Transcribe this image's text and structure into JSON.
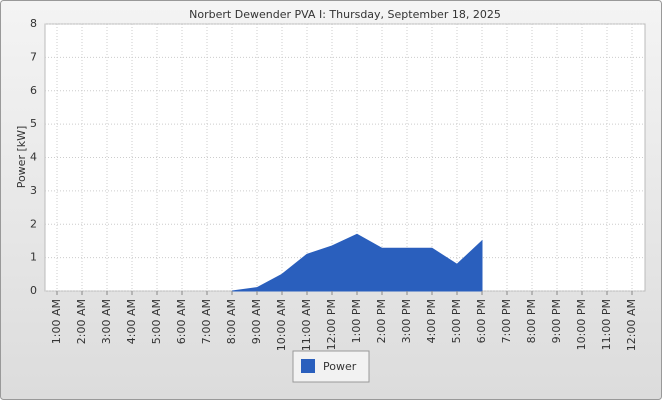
{
  "chart_data": {
    "type": "area",
    "title": "Norbert Dewender PVA I: Thursday, September 18, 2025",
    "y_label": "Power [kW]",
    "categories": [
      "1:00 AM",
      "2:00 AM",
      "3:00 AM",
      "4:00 AM",
      "5:00 AM",
      "6:00 AM",
      "7:00 AM",
      "8:00 AM",
      "9:00 AM",
      "10:00 AM",
      "11:00 AM",
      "12:00 PM",
      "1:00 PM",
      "2:00 PM",
      "3:00 PM",
      "4:00 PM",
      "5:00 PM",
      "6:00 PM",
      "7:00 PM",
      "8:00 PM",
      "9:00 PM",
      "10:00 PM",
      "11:00 PM",
      "12:00 AM"
    ],
    "series": [
      {
        "name": "Power",
        "color": "#2a5fbd",
        "values": [
          null,
          null,
          null,
          null,
          null,
          null,
          null,
          0,
          0.1,
          0.5,
          1.1,
          1.35,
          1.7,
          1.28,
          1.28,
          1.28,
          0.8,
          1.5,
          null,
          null,
          null,
          null,
          null,
          null
        ]
      }
    ],
    "ylim": [
      0,
      8
    ],
    "yticks": [
      0,
      1,
      2,
      3,
      4,
      5,
      6,
      7,
      8
    ],
    "grid": true
  }
}
